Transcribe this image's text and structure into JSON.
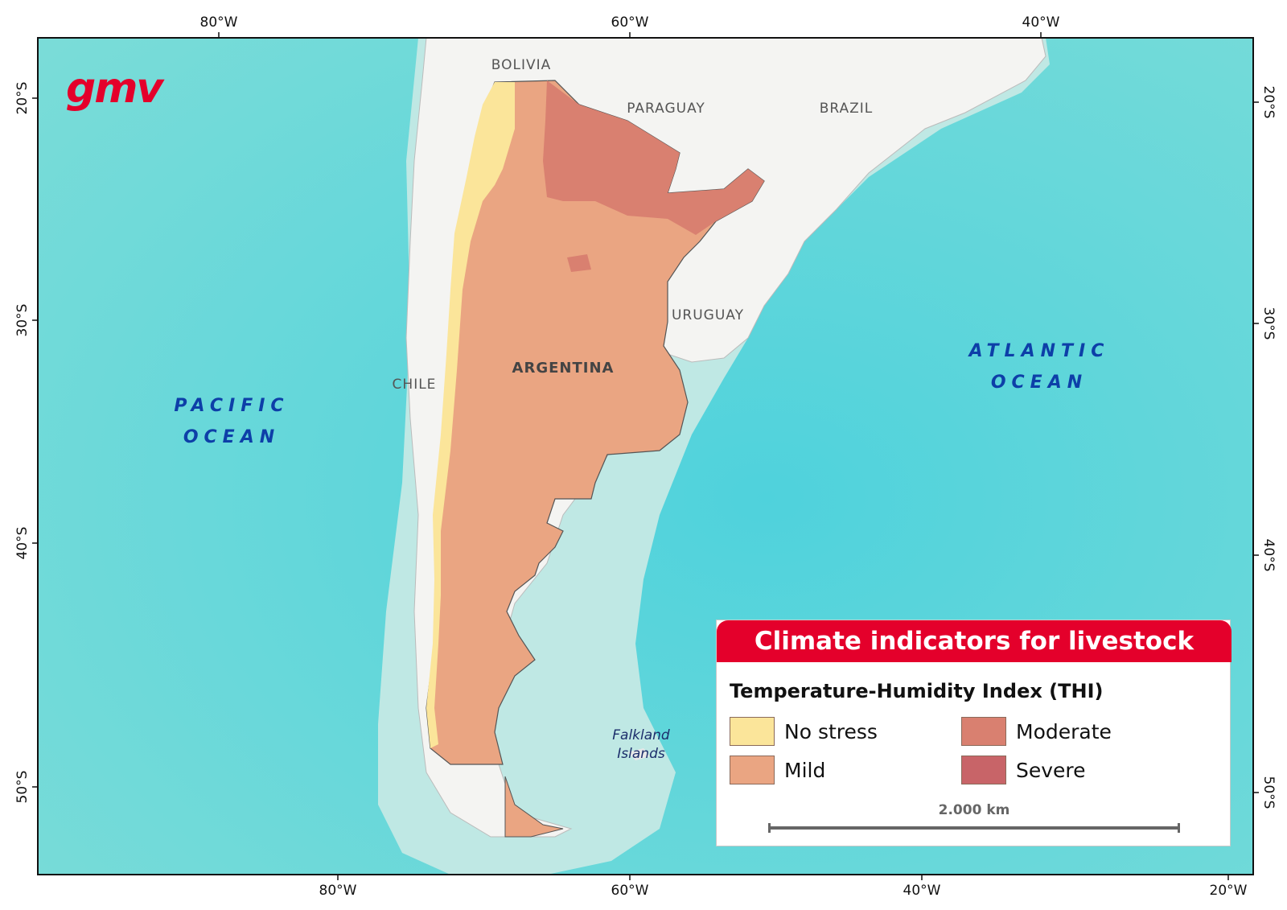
{
  "logo": {
    "text": "gmv",
    "color": "#e4002b"
  },
  "graticule": {
    "top_longitudes": [
      "80°W",
      "60°W",
      "40°W"
    ],
    "bottom_longitudes": [
      "80°W",
      "60°W",
      "40°W",
      "20°W"
    ],
    "left_latitudes": [
      "20°S",
      "30°S",
      "40°S",
      "50°S"
    ],
    "right_latitudes": [
      "20°S",
      "30°S",
      "40°S",
      "50°S"
    ]
  },
  "labels": {
    "countries": [
      "BOLIVIA",
      "PARAGUAY",
      "BRAZIL",
      "URUGUAY",
      "CHILE"
    ],
    "main_country": "ARGENTINA",
    "pacific": [
      "PACIFIC",
      "OCEAN"
    ],
    "atlantic": [
      "ATLANTIC",
      "OCEAN"
    ],
    "falklands": [
      "Falkland",
      "Islands"
    ]
  },
  "legend": {
    "title": "Climate indicators for livestock",
    "subtitle": "Temperature-Humidity Index (THI)",
    "items": [
      {
        "label": "No stress",
        "color": "#fbe59a"
      },
      {
        "label": "Mild",
        "color": "#eaa582"
      },
      {
        "label": "Moderate",
        "color": "#d98070"
      },
      {
        "label": "Severe",
        "color": "#c86468"
      }
    ],
    "scale": "2.000 km"
  },
  "colors": {
    "ocean": "#6fd6d8",
    "shelf": "#bfe8e4",
    "land": "#f4f4f4",
    "header": "#e4002b"
  }
}
